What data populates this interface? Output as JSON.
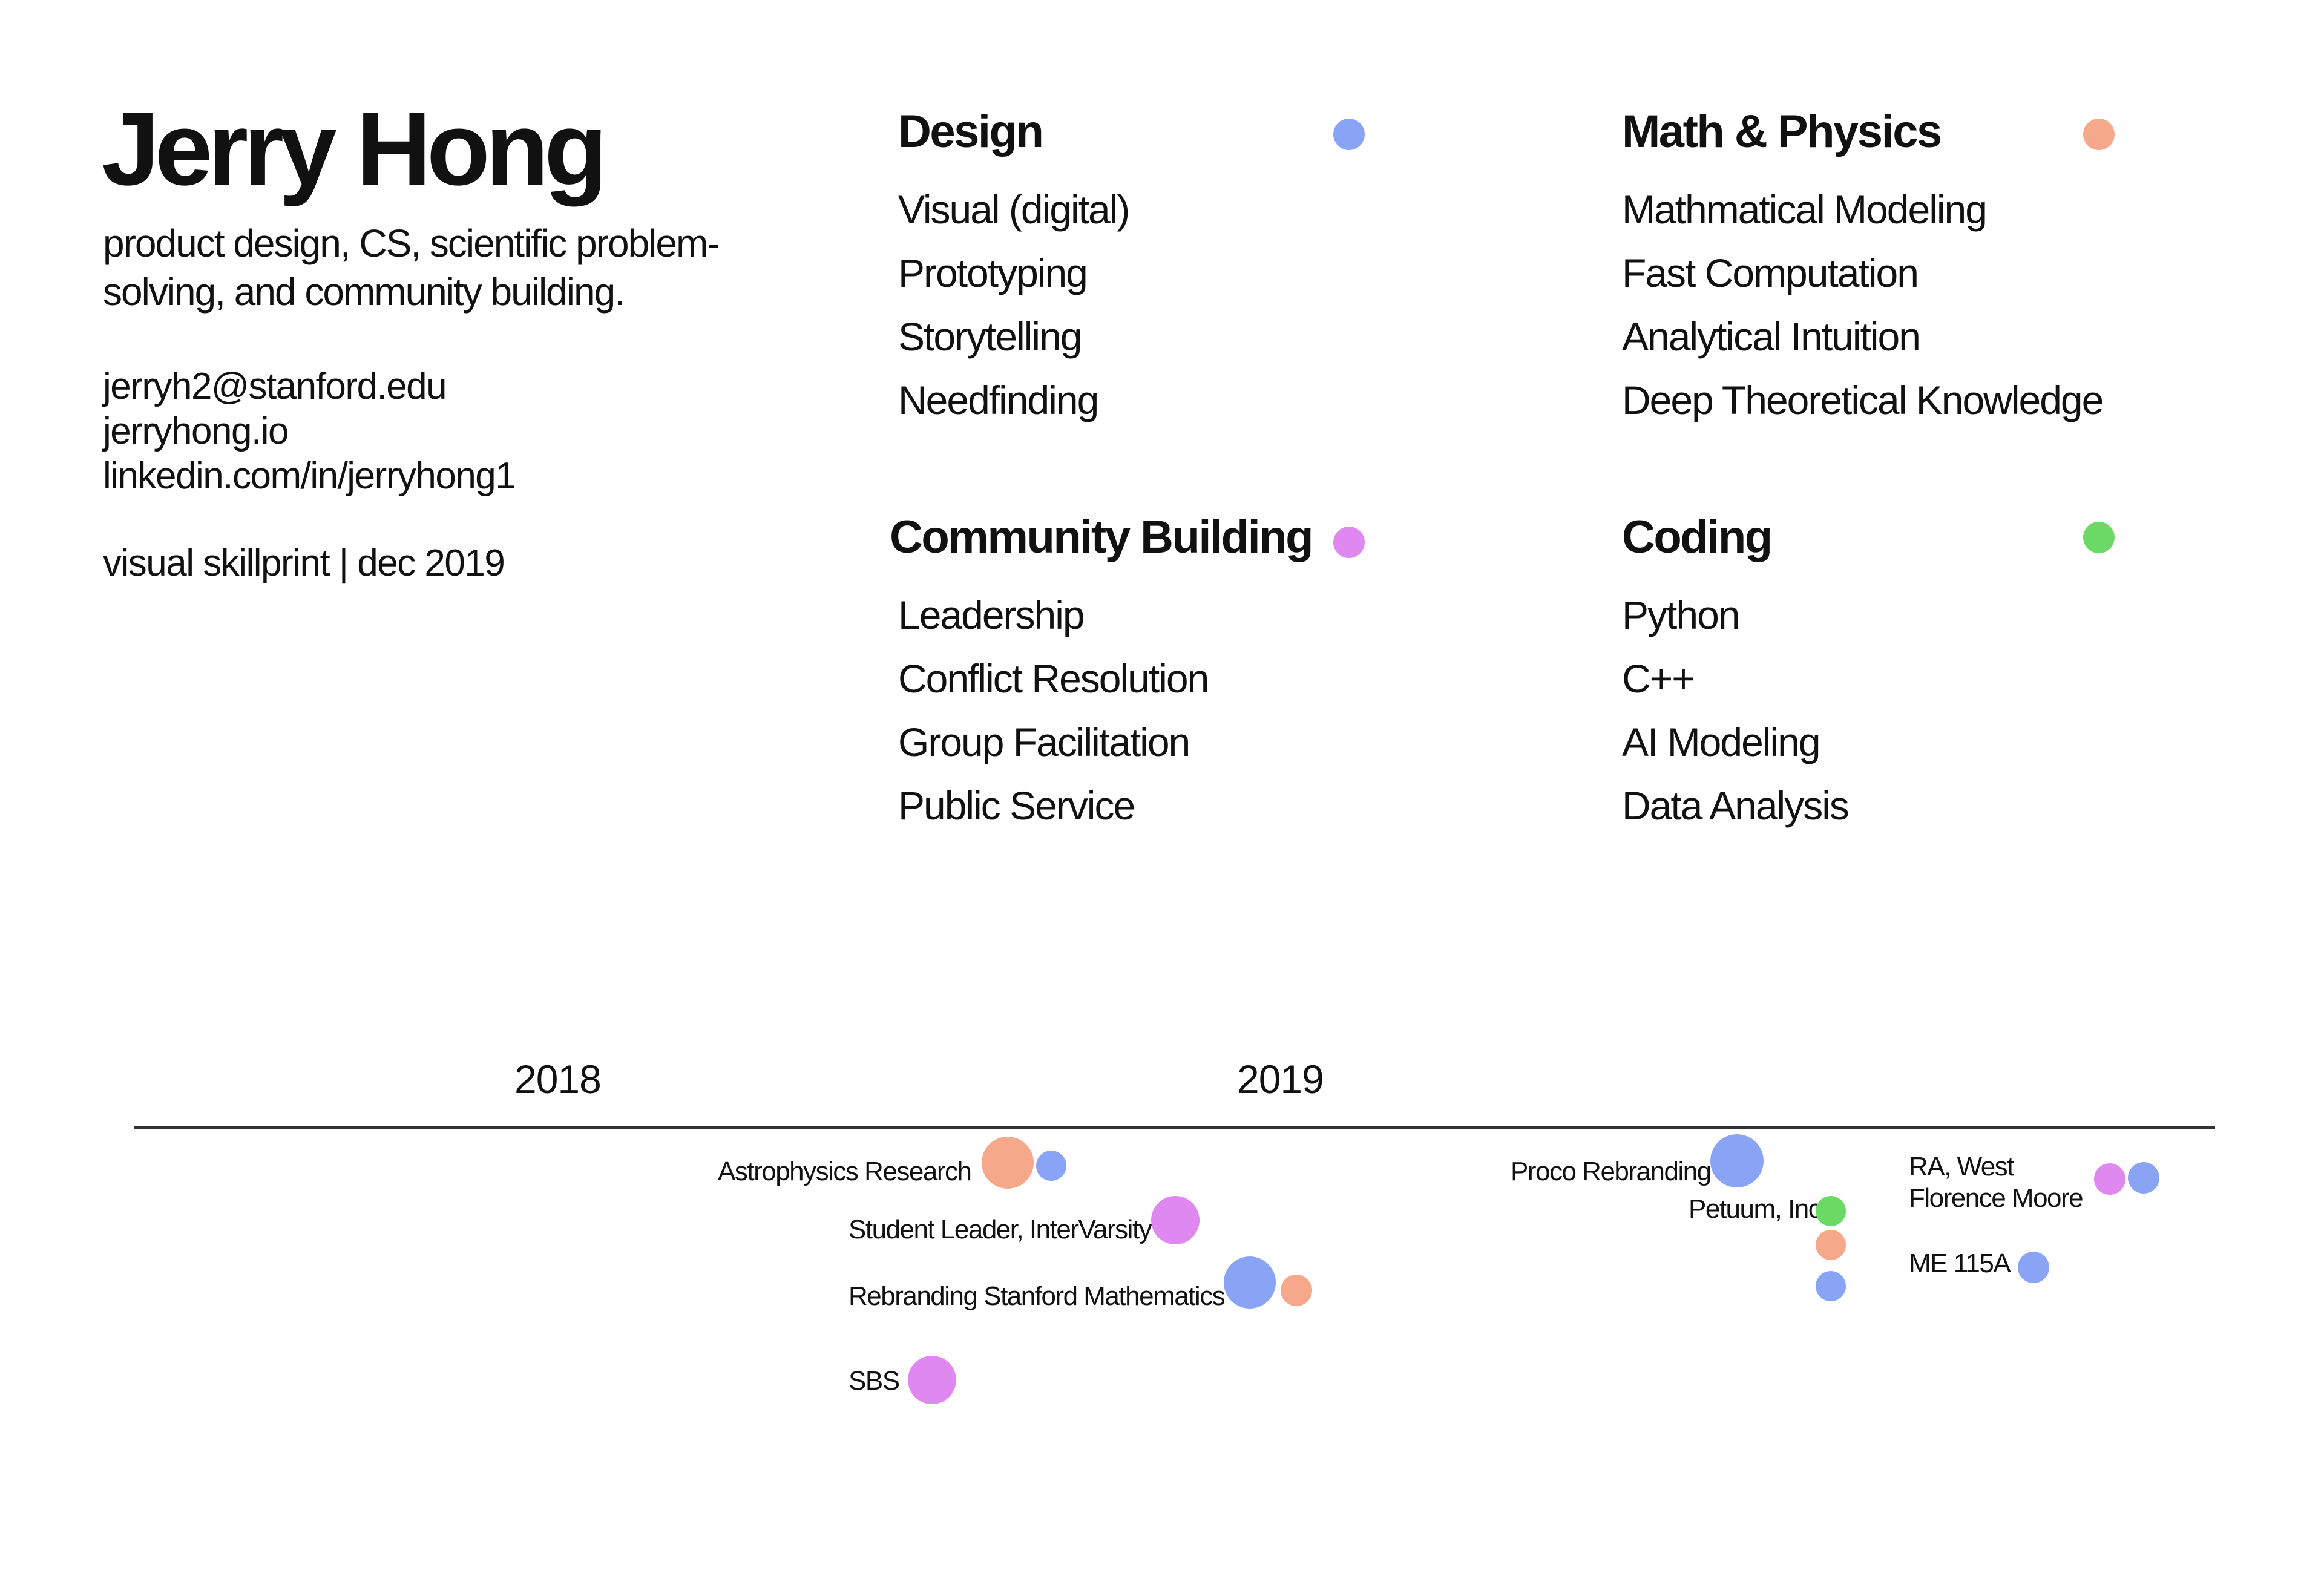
{
  "profile": {
    "name": "Jerry Hong",
    "tagline": "product design, CS, scientific problem-solving, and community building.",
    "contacts": [
      "jerryh2@stanford.edu",
      "jerryhong.io",
      "linkedin.com/in/jerryhong1"
    ],
    "footer": "visual skillprint | dec 2019"
  },
  "colors": {
    "design": "#8aa4f5",
    "math_physics": "#f5a88a",
    "community": "#df88f0",
    "coding": "#6cd964"
  },
  "skills": {
    "design": {
      "title": "Design",
      "items": [
        "Visual (digital)",
        "Prototyping",
        "Storytelling",
        "Needfinding"
      ]
    },
    "math_physics": {
      "title": "Math & Physics",
      "items": [
        "Mathmatical Modeling",
        "Fast Computation",
        "Analytical Intuition",
        "Deep Theoretical Knowledge"
      ]
    },
    "community": {
      "title": "Community Building",
      "items": [
        "Leadership",
        "Conflict Resolution",
        "Group Facilitation",
        "Public Service"
      ]
    },
    "coding": {
      "title": "Coding",
      "items": [
        "Python",
        "C++",
        "AI Modeling",
        "Data Analysis"
      ]
    }
  },
  "timeline": {
    "years": [
      "2018",
      "2019"
    ],
    "events": [
      {
        "label": "Astrophysics Research",
        "skills": [
          "math_physics",
          "design"
        ]
      },
      {
        "label": "Student Leader, InterVarsity",
        "skills": [
          "community"
        ]
      },
      {
        "label": "Rebranding Stanford Mathematics",
        "skills": [
          "design",
          "math_physics"
        ]
      },
      {
        "label": "SBS",
        "skills": [
          "community"
        ]
      },
      {
        "label": "Proco Rebranding",
        "skills": [
          "design"
        ]
      },
      {
        "label": "Petuum, Inc.",
        "skills": [
          "coding",
          "math_physics",
          "design"
        ]
      },
      {
        "label": "RA, West Florence Moore",
        "skills": [
          "community",
          "design"
        ]
      },
      {
        "label": "ME 115A",
        "skills": [
          "design"
        ]
      }
    ]
  }
}
